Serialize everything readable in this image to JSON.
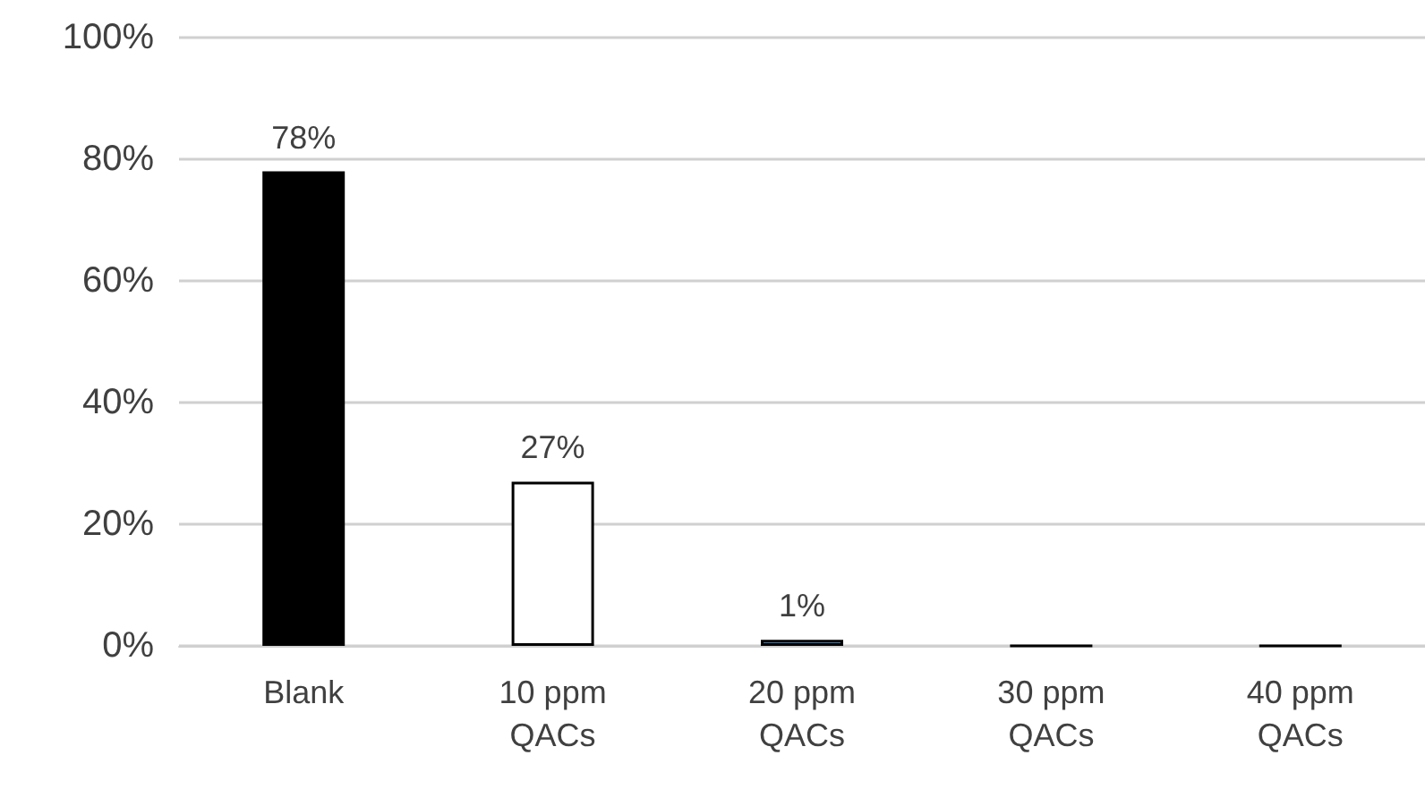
{
  "chart_data": {
    "type": "bar",
    "categories": [
      "Blank",
      "10 ppm\nQACs",
      "20 ppm\nQACs",
      "30 ppm\nQACs",
      "40 ppm\nQACs"
    ],
    "values": [
      78,
      27,
      1,
      0,
      0
    ],
    "colors": [
      "#000000",
      "#ffffff",
      "#5b9bd5",
      "#000000",
      "#000000"
    ],
    "value_labels": [
      "78%",
      "27%",
      "1%",
      null,
      null
    ],
    "ylim": [
      0,
      100
    ],
    "yticks": [
      {
        "value": 0,
        "label": "0%"
      },
      {
        "value": 20,
        "label": "20%"
      },
      {
        "value": 40,
        "label": "40%"
      },
      {
        "value": 60,
        "label": "60%"
      },
      {
        "value": 80,
        "label": "80%"
      },
      {
        "value": 100,
        "label": "100%"
      }
    ],
    "grid": "y"
  }
}
